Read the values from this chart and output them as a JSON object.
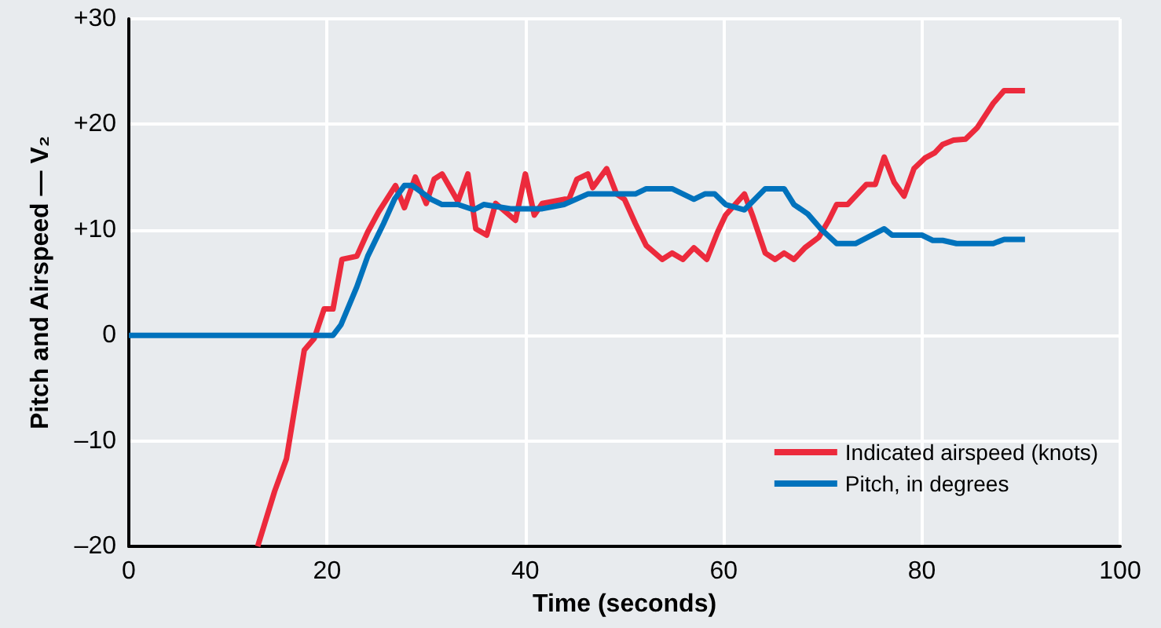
{
  "chart_data": {
    "type": "line",
    "xlabel": "Time (seconds)",
    "ylabel": "Pitch and Airspeed — V₂",
    "xlim": [
      0,
      100
    ],
    "xticks": [
      0,
      20,
      40,
      60,
      80,
      100
    ],
    "ylim": [
      -20,
      30
    ],
    "yticks": [
      {
        "value": -20,
        "label": "–20"
      },
      {
        "value": -10,
        "label": "–10"
      },
      0,
      {
        "value": 10,
        "label": "+10"
      },
      {
        "value": 20,
        "label": "+20"
      },
      {
        "value": 30,
        "label": "+30"
      }
    ],
    "grid": true,
    "legend": "bottom right",
    "marker": "none",
    "line_style": "solid",
    "series": [
      {
        "name": "Indicated airspeed (knots)",
        "color": "#ec2a3c",
        "x": [
          13,
          14.7,
          15.9,
          17.7,
          18.7,
          19.7,
          20.6,
          21.5,
          23.0,
          24.1,
          25.2,
          26.9,
          27.8,
          28.9,
          30.0,
          30.8,
          31.6,
          33.2,
          34.2,
          35.0,
          36.1,
          37.0,
          39.0,
          40.0,
          40.9,
          41.7,
          43.9,
          44.4,
          45.2,
          46.3,
          46.8,
          48.2,
          49.2,
          50.0,
          51.1,
          52.2,
          53.8,
          54.8,
          55.9,
          57.0,
          58.3,
          59.4,
          60.2,
          62.1,
          62.9,
          64.2,
          65.2,
          66.1,
          67.1,
          68.2,
          69.6,
          70.6,
          71.4,
          72.5,
          74.4,
          75.3,
          76.2,
          77.2,
          78.2,
          79.2,
          80.3,
          81.3,
          82.1,
          83.2,
          84.4,
          85.6,
          87.2,
          88.3,
          90.4
        ],
        "values": [
          -20,
          -14.8,
          -11.7,
          -1.4,
          -0.3,
          2.5,
          2.5,
          7.2,
          7.5,
          9.8,
          11.7,
          14.2,
          12.1,
          15.0,
          12.5,
          14.8,
          15.3,
          12.7,
          15.3,
          10.1,
          9.5,
          12.5,
          10.9,
          15.3,
          11.4,
          12.5,
          12.9,
          12.9,
          14.8,
          15.3,
          14.0,
          15.8,
          13.4,
          12.9,
          10.6,
          8.5,
          7.2,
          7.8,
          7.2,
          8.3,
          7.2,
          9.8,
          11.4,
          13.4,
          11.4,
          7.8,
          7.2,
          7.8,
          7.2,
          8.3,
          9.3,
          10.9,
          12.4,
          12.4,
          14.3,
          14.3,
          16.9,
          14.5,
          13.2,
          15.8,
          16.8,
          17.3,
          18.1,
          18.5,
          18.6,
          19.7,
          22.0,
          23.2,
          23.2
        ]
      },
      {
        "name": "Pitch, in degrees",
        "color": "#0072bc",
        "x": [
          0,
          20.6,
          21.4,
          23.0,
          24.1,
          25.7,
          26.8,
          27.8,
          28.6,
          30.5,
          31.6,
          33.2,
          34.8,
          35.8,
          38.5,
          41.7,
          43.9,
          46.3,
          51.1,
          52.2,
          54.8,
          57.0,
          58.1,
          59.1,
          60.2,
          62.1,
          64.2,
          66.1,
          67.1,
          68.5,
          69.8,
          71.4,
          73.3,
          76.2,
          77.0,
          80.0,
          81.1,
          82.1,
          83.5,
          87.2,
          88.3,
          90.4
        ],
        "values": [
          0,
          0,
          1.0,
          4.6,
          7.5,
          10.6,
          12.9,
          14.2,
          14.2,
          12.9,
          12.4,
          12.4,
          11.9,
          12.4,
          12.0,
          12.0,
          12.4,
          13.4,
          13.4,
          13.9,
          13.9,
          12.9,
          13.4,
          13.4,
          12.4,
          11.9,
          13.9,
          13.9,
          12.4,
          11.5,
          10.1,
          8.7,
          8.7,
          10.1,
          9.5,
          9.5,
          9.0,
          9.0,
          8.7,
          8.7,
          9.1,
          9.1
        ]
      }
    ]
  }
}
